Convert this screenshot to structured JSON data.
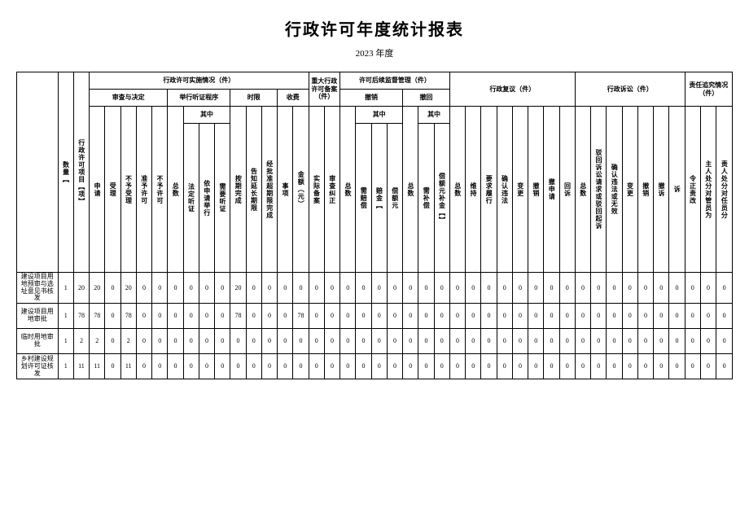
{
  "title": "行政许可年度统计报表",
  "subtitle": "2023 年度",
  "groups": {
    "g1": "行政许可实施情况（件）",
    "g1a": "审查与决定",
    "g1b": "举行听证程序",
    "g1c": "时限",
    "g1d": "收费",
    "g1b_sub": "其中",
    "g2": "重大行政许可备案（件）",
    "g3": "许可后续监督管理（件）",
    "g3a": "撤销",
    "g3b": "撤回",
    "g3ab_sub": "其中",
    "g4": "行政复议（件）",
    "g5": "行政诉讼（件）",
    "g6": "责任追究情况（件）"
  },
  "cols": [
    "数量【",
    "行政许可项目【项】",
    "申请",
    "受理",
    "不予受理",
    "准予许可",
    "不予许可",
    "总数",
    "法定听证",
    "依申请举行",
    "需要听证",
    "按期完成",
    "告知延长期限",
    "经批准超期限完成",
    "事项",
    "金额（元）",
    "实际备案",
    "审查纠正",
    "总数",
    "需赔偿",
    "赔金【",
    "偿额元",
    "总数",
    "需补偿",
    "偿额元补金【】",
    "总数",
    "维持",
    "要求履行",
    "确认违法",
    "变更",
    "撤销",
    "撤申请",
    "回诉",
    "总数",
    "驳回诉讼请求或驳回起诉",
    "确认违法或无效",
    "变更",
    "撤销",
    "撤诉",
    "诉",
    "令正责改",
    "主人处分对管员为",
    "责人处分对任员分"
  ],
  "rows": [
    {
      "label": "建设项目用地预审与选址意见书核发",
      "cells": [
        "1",
        "20",
        "20",
        "0",
        "20",
        "0",
        "0",
        "0",
        "0",
        "0",
        "0",
        "20",
        "0",
        "0",
        "0",
        "0",
        "0",
        "0",
        "0",
        "0",
        "0",
        "0",
        "0",
        "0",
        "0",
        "0",
        "0",
        "0",
        "0",
        "0",
        "0",
        "0",
        "0",
        "0",
        "0",
        "0",
        "0",
        "0",
        "0",
        "0",
        "0",
        "0",
        "0"
      ]
    },
    {
      "label": "建设项目用地审批",
      "cells": [
        "1",
        "78",
        "78",
        "0",
        "78",
        "0",
        "0",
        "0",
        "0",
        "0",
        "0",
        "78",
        "0",
        "0",
        "0",
        "78",
        "0",
        "0",
        "0",
        "0",
        "0",
        "0",
        "0",
        "0",
        "0",
        "0",
        "0",
        "0",
        "0",
        "0",
        "0",
        "0",
        "0",
        "0",
        "0",
        "0",
        "0",
        "0",
        "0",
        "0",
        "0",
        "0",
        "0"
      ]
    },
    {
      "label": "临时用地审批",
      "cells": [
        "1",
        "2",
        "2",
        "0",
        "2",
        "0",
        "0",
        "0",
        "0",
        "0",
        "0",
        "0",
        "0",
        "0",
        "0",
        "0",
        "0",
        "0",
        "0",
        "0",
        "0",
        "0",
        "0",
        "0",
        "0",
        "0",
        "0",
        "0",
        "0",
        "0",
        "0",
        "0",
        "0",
        "0",
        "0",
        "0",
        "0",
        "0",
        "0",
        "0",
        "0",
        "0",
        "0"
      ]
    },
    {
      "label": "乡村建设规划许可证核发",
      "cells": [
        "1",
        "11",
        "11",
        "0",
        "11",
        "0",
        "0",
        "0",
        "0",
        "0",
        "0",
        "0",
        "0",
        "0",
        "0",
        "0",
        "0",
        "0",
        "0",
        "0",
        "0",
        "0",
        "0",
        "0",
        "0",
        "0",
        "0",
        "0",
        "0",
        "0",
        "0",
        "0",
        "0",
        "0",
        "0",
        "0",
        "0",
        "0",
        "0",
        "0",
        "0",
        "0",
        "0"
      ]
    }
  ]
}
